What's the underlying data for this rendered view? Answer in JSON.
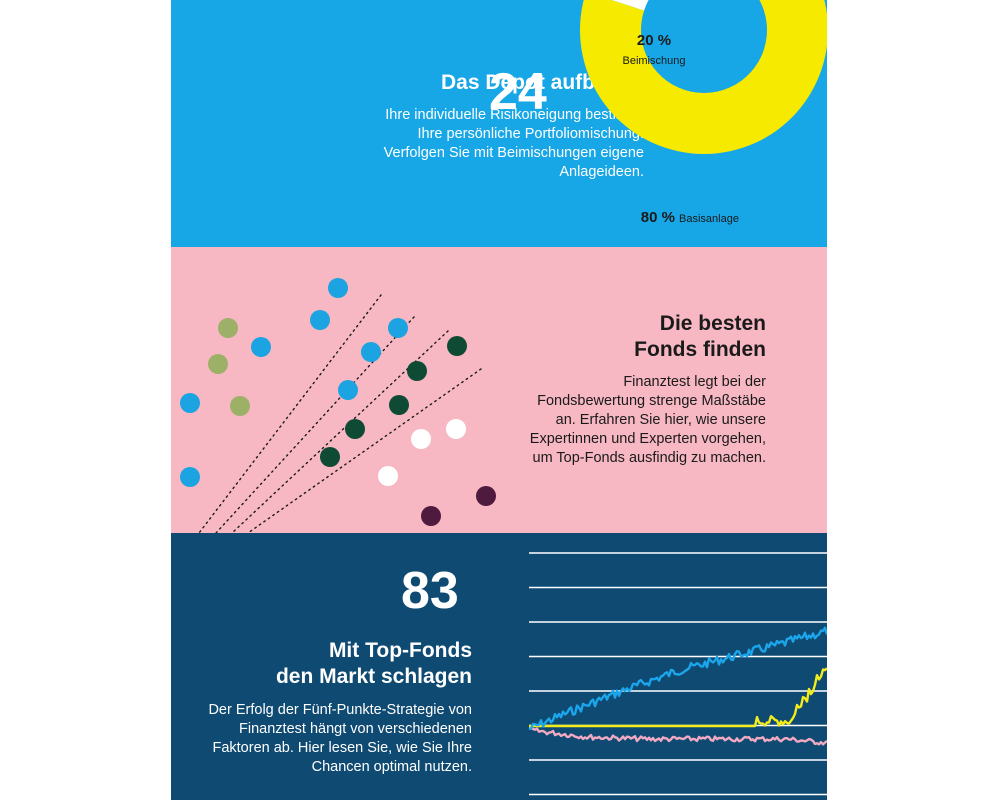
{
  "section1": {
    "title": "Das Depot aufbauen",
    "page_number": "24",
    "text": "Ihre individuelle Risikoneigung bestimmt Ihre persönliche Portfoliomischung. Verfolgen Sie mit Beimischungen eigene Anlageideen.",
    "donut": {
      "colors": {
        "base": "#f5ea00",
        "mix": "#ffffff"
      },
      "slices": [
        {
          "percent": 80,
          "pct_label": "80 %",
          "name": "Basisanlage"
        },
        {
          "percent": 20,
          "pct_label": "20 %",
          "name": "Beimischung"
        }
      ]
    }
  },
  "section2": {
    "title_line1": "Die besten",
    "title_line2": "Fonds finden",
    "text": "Finanztest legt bei der Fondsbewertung strenge Maßstäbe an. Erfahren Sie hier, wie unsere Expertinnen und Experten vorgehen, um Top-Fonds ausfindig zu machen.",
    "dot_colors": {
      "blue": "#1ca3e2",
      "olive": "#9cb067",
      "green": "#0f4a34",
      "white": "#ffffff",
      "plum": "#4e1a3e"
    }
  },
  "section3": {
    "page_number": "83",
    "title_line1": "Mit Top-Fonds",
    "title_line2": "den Markt schlagen",
    "text": "Der Erfolg der Fünf-Punkte-Strategie von Finanztest hängt von verschiedenen Faktoren ab. Hier lesen Sie, wie Sie Ihre Chancen optimal nutzen.",
    "chart_colors": {
      "blue": "#1ba6ec",
      "yellow": "#f2ec1c",
      "pink": "#f2a9c2",
      "grid": "#ffffff"
    }
  }
}
